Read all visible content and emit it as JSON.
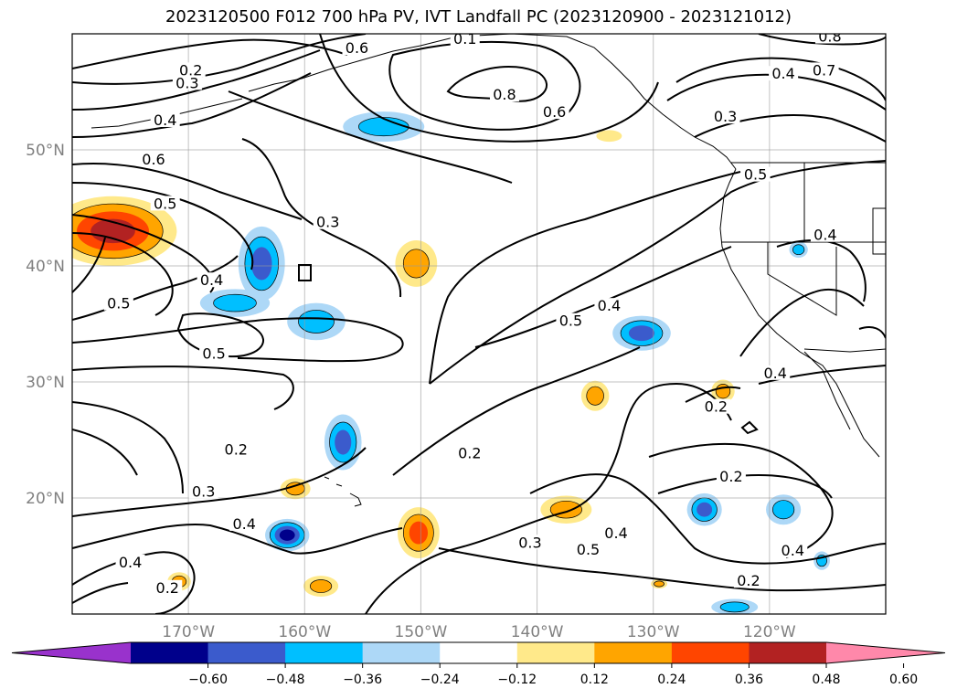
{
  "title": "2023120500 F012 700 hPa PV, IVT Landfall PC (2023120900 - 2023121012)",
  "map": {
    "projection": "PlateCarree",
    "lon_range": [
      -180,
      -110
    ],
    "lat_range": [
      10,
      60
    ],
    "lat_labels": [
      "50°N",
      "40°N",
      "30°N",
      "20°N"
    ],
    "lat_values": [
      50,
      40,
      30,
      20
    ],
    "lon_labels": [
      "170°W",
      "160°W",
      "150°W",
      "140°W",
      "130°W",
      "120°W"
    ],
    "lon_values": [
      -170,
      -160,
      -150,
      -140,
      -130,
      -120
    ],
    "gridlines": true,
    "coastlines": true
  },
  "contours": {
    "color": "#000000",
    "labels": [
      {
        "text": "0.2",
        "lon": -169.8,
        "lat": 56.9
      },
      {
        "text": "0.3",
        "lon": -170.1,
        "lat": 55.8
      },
      {
        "text": "0.6",
        "lon": -155.5,
        "lat": 58.8
      },
      {
        "text": "0.1",
        "lon": -146.2,
        "lat": 59.6
      },
      {
        "text": "0.8",
        "lon": -142.8,
        "lat": 54.8
      },
      {
        "text": "0.6",
        "lon": -138.5,
        "lat": 53.3
      },
      {
        "text": "0.7",
        "lon": -115.3,
        "lat": 56.9
      },
      {
        "text": "0.4",
        "lon": -118.8,
        "lat": 56.6
      },
      {
        "text": "0.8",
        "lon": -114.8,
        "lat": 59.8
      },
      {
        "text": "0.3",
        "lon": -123.8,
        "lat": 52.9
      },
      {
        "text": "0.4",
        "lon": -172.0,
        "lat": 52.6
      },
      {
        "text": "0.6",
        "lon": -173.0,
        "lat": 49.2
      },
      {
        "text": "0.5",
        "lon": -172.0,
        "lat": 45.4
      },
      {
        "text": "0.3",
        "lon": -158.0,
        "lat": 43.8
      },
      {
        "text": "0.5",
        "lon": -121.2,
        "lat": 47.9
      },
      {
        "text": "0.4",
        "lon": -115.2,
        "lat": 42.7
      },
      {
        "text": "0.4",
        "lon": -168.0,
        "lat": 38.8
      },
      {
        "text": "0.5",
        "lon": -176.0,
        "lat": 36.8
      },
      {
        "text": "0.5",
        "lon": -167.8,
        "lat": 32.5
      },
      {
        "text": "0.5",
        "lon": -137.1,
        "lat": 35.3
      },
      {
        "text": "0.4",
        "lon": -133.8,
        "lat": 36.6
      },
      {
        "text": "0.4",
        "lon": -119.5,
        "lat": 30.8
      },
      {
        "text": "0.2",
        "lon": -124.6,
        "lat": 27.9
      },
      {
        "text": "0.2",
        "lon": -165.9,
        "lat": 24.2
      },
      {
        "text": "0.3",
        "lon": -168.7,
        "lat": 20.6
      },
      {
        "text": "0.2",
        "lon": -145.8,
        "lat": 23.9
      },
      {
        "text": "0.2",
        "lon": -123.3,
        "lat": 21.9
      },
      {
        "text": "0.4",
        "lon": -165.2,
        "lat": 17.8
      },
      {
        "text": "0.3",
        "lon": -140.6,
        "lat": 16.2
      },
      {
        "text": "0.5",
        "lon": -135.6,
        "lat": 15.6
      },
      {
        "text": "0.4",
        "lon": -133.2,
        "lat": 17.0
      },
      {
        "text": "0.4",
        "lon": -118.0,
        "lat": 15.5
      },
      {
        "text": "0.2",
        "lon": -121.8,
        "lat": 12.9
      },
      {
        "text": "0.4",
        "lon": -175.0,
        "lat": 14.5
      },
      {
        "text": "0.2",
        "lon": -171.8,
        "lat": 12.3
      }
    ]
  },
  "filled_anomalies": [
    {
      "lon": -176.5,
      "lat": 43.0,
      "value": 0.55,
      "rx": 5.5,
      "ry": 3.0
    },
    {
      "lon": -150.4,
      "lat": 40.2,
      "value": 0.3,
      "rx": 1.8,
      "ry": 2.0
    },
    {
      "lon": -163.7,
      "lat": 40.2,
      "value": -0.4,
      "rx": 2.0,
      "ry": 3.2
    },
    {
      "lon": -166.0,
      "lat": 36.8,
      "value": -0.3,
      "rx": 3.0,
      "ry": 1.2
    },
    {
      "lon": -159.0,
      "lat": 35.2,
      "value": -0.3,
      "rx": 2.5,
      "ry": 1.6
    },
    {
      "lon": -153.2,
      "lat": 52.0,
      "value": -0.35,
      "rx": 3.5,
      "ry": 1.3
    },
    {
      "lon": -133.8,
      "lat": 51.2,
      "value": 0.2,
      "rx": 1.1,
      "ry": 0.5
    },
    {
      "lon": -131.0,
      "lat": 34.2,
      "value": -0.45,
      "rx": 2.5,
      "ry": 1.5
    },
    {
      "lon": -135.0,
      "lat": 28.8,
      "value": 0.3,
      "rx": 1.2,
      "ry": 1.3
    },
    {
      "lon": -124.0,
      "lat": 29.2,
      "value": 0.3,
      "rx": 1.0,
      "ry": 1.0
    },
    {
      "lon": -156.7,
      "lat": 24.8,
      "value": -0.4,
      "rx": 1.6,
      "ry": 2.4
    },
    {
      "lon": -160.8,
      "lat": 20.8,
      "value": 0.3,
      "rx": 1.3,
      "ry": 0.9
    },
    {
      "lon": -161.5,
      "lat": 16.8,
      "value": -0.5,
      "rx": 1.9,
      "ry": 1.4
    },
    {
      "lon": -150.2,
      "lat": 17.0,
      "value": 0.4,
      "rx": 1.8,
      "ry": 2.2
    },
    {
      "lon": -137.5,
      "lat": 19.0,
      "value": 0.3,
      "rx": 2.2,
      "ry": 1.2
    },
    {
      "lon": -125.6,
      "lat": 19.0,
      "value": -0.4,
      "rx": 1.5,
      "ry": 1.4
    },
    {
      "lon": -118.8,
      "lat": 19.0,
      "value": -0.35,
      "rx": 1.5,
      "ry": 1.3
    },
    {
      "lon": -158.6,
      "lat": 12.4,
      "value": 0.3,
      "rx": 1.5,
      "ry": 0.9
    },
    {
      "lon": -170.8,
      "lat": 12.8,
      "value": 0.3,
      "rx": 1.0,
      "ry": 0.8
    },
    {
      "lon": -123.0,
      "lat": 10.6,
      "value": -0.3,
      "rx": 2.0,
      "ry": 0.7
    },
    {
      "lon": -115.5,
      "lat": 14.6,
      "value": -0.25,
      "rx": 0.7,
      "ry": 0.8
    },
    {
      "lon": -117.5,
      "lat": 41.4,
      "value": -0.25,
      "rx": 0.8,
      "ry": 0.7
    },
    {
      "lon": -129.5,
      "lat": 12.6,
      "value": 0.25,
      "rx": 0.7,
      "ry": 0.4
    }
  ],
  "colorbar": {
    "ticks": [
      "−0.60",
      "−0.48",
      "−0.36",
      "−0.24",
      "−0.12",
      "0.12",
      "0.24",
      "0.36",
      "0.48",
      "0.60"
    ],
    "bounds": [
      -0.72,
      -0.6,
      -0.48,
      -0.36,
      -0.24,
      -0.12,
      0.12,
      0.24,
      0.36,
      0.48,
      0.6,
      0.72
    ],
    "colors": [
      "#9932cc",
      "#00008b",
      "#3b5bcc",
      "#00bfff",
      "#add8f7",
      "#ffffff",
      "#ffe98a",
      "#ffa500",
      "#ff4500",
      "#b22222",
      "#ff88aa"
    ],
    "extend": "both"
  }
}
